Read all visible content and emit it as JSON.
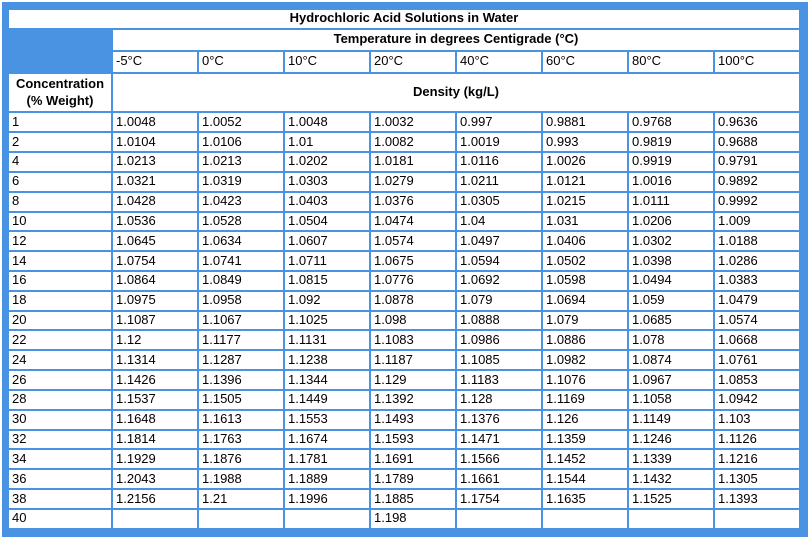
{
  "colors": {
    "frame_blue": "#4a92e2",
    "cell_background": "#ffffff",
    "text_color": "#000000"
  },
  "table": {
    "title": "Hydrochloric Acid Solutions in Water",
    "temperature_header": "Temperature in degrees Centigrade (°C)",
    "temperature_columns": [
      "-5°C",
      "0°C",
      "10°C",
      "20°C",
      "40°C",
      "60°C",
      "80°C",
      "100°C"
    ],
    "concentration_label_line1": "Concentration",
    "concentration_label_line2": "(% Weight)",
    "density_label": "Density (kg/L)",
    "rows": [
      {
        "concentration": "1",
        "values": [
          "1.0048",
          "1.0052",
          "1.0048",
          "1.0032",
          "0.997",
          "0.9881",
          "0.9768",
          "0.9636"
        ]
      },
      {
        "concentration": "2",
        "values": [
          "1.0104",
          "1.0106",
          "1.01",
          "1.0082",
          "1.0019",
          "0.993",
          "0.9819",
          "0.9688"
        ]
      },
      {
        "concentration": "4",
        "values": [
          "1.0213",
          "1.0213",
          "1.0202",
          "1.0181",
          "1.0116",
          "1.0026",
          "0.9919",
          "0.9791"
        ]
      },
      {
        "concentration": "6",
        "values": [
          "1.0321",
          "1.0319",
          "1.0303",
          "1.0279",
          "1.0211",
          "1.0121",
          "1.0016",
          "0.9892"
        ]
      },
      {
        "concentration": "8",
        "values": [
          "1.0428",
          "1.0423",
          "1.0403",
          "1.0376",
          "1.0305",
          "1.0215",
          "1.0111",
          "0.9992"
        ]
      },
      {
        "concentration": "10",
        "values": [
          "1.0536",
          "1.0528",
          "1.0504",
          "1.0474",
          "1.04",
          "1.031",
          "1.0206",
          "1.009"
        ]
      },
      {
        "concentration": "12",
        "values": [
          "1.0645",
          "1.0634",
          "1.0607",
          "1.0574",
          "1.0497",
          "1.0406",
          "1.0302",
          "1.0188"
        ]
      },
      {
        "concentration": "14",
        "values": [
          "1.0754",
          "1.0741",
          "1.0711",
          "1.0675",
          "1.0594",
          "1.0502",
          "1.0398",
          "1.0286"
        ]
      },
      {
        "concentration": "16",
        "values": [
          "1.0864",
          "1.0849",
          "1.0815",
          "1.0776",
          "1.0692",
          "1.0598",
          "1.0494",
          "1.0383"
        ]
      },
      {
        "concentration": "18",
        "values": [
          "1.0975",
          "1.0958",
          "1.092",
          "1.0878",
          "1.079",
          "1.0694",
          "1.059",
          "1.0479"
        ]
      },
      {
        "concentration": "20",
        "values": [
          "1.1087",
          "1.1067",
          "1.1025",
          "1.098",
          "1.0888",
          "1.079",
          "1.0685",
          "1.0574"
        ]
      },
      {
        "concentration": "22",
        "values": [
          "1.12",
          "1.1177",
          "1.1131",
          "1.1083",
          "1.0986",
          "1.0886",
          "1.078",
          "1.0668"
        ]
      },
      {
        "concentration": "24",
        "values": [
          "1.1314",
          "1.1287",
          "1.1238",
          "1.1187",
          "1.1085",
          "1.0982",
          "1.0874",
          "1.0761"
        ]
      },
      {
        "concentration": "26",
        "values": [
          "1.1426",
          "1.1396",
          "1.1344",
          "1.129",
          "1.1183",
          "1.1076",
          "1.0967",
          "1.0853"
        ]
      },
      {
        "concentration": "28",
        "values": [
          "1.1537",
          "1.1505",
          "1.1449",
          "1.1392",
          "1.128",
          "1.1169",
          "1.1058",
          "1.0942"
        ]
      },
      {
        "concentration": "30",
        "values": [
          "1.1648",
          "1.1613",
          "1.1553",
          "1.1493",
          "1.1376",
          "1.126",
          "1.1149",
          "1.103"
        ]
      },
      {
        "concentration": "32",
        "values": [
          "1.1814",
          "1.1763",
          "1.1674",
          "1.1593",
          "1.1471",
          "1.1359",
          "1.1246",
          "1.1126"
        ]
      },
      {
        "concentration": "34",
        "values": [
          "1.1929",
          "1.1876",
          "1.1781",
          "1.1691",
          "1.1566",
          "1.1452",
          "1.1339",
          "1.1216"
        ]
      },
      {
        "concentration": "36",
        "values": [
          "1.2043",
          "1.1988",
          "1.1889",
          "1.1789",
          "1.1661",
          "1.1544",
          "1.1432",
          "1.1305"
        ]
      },
      {
        "concentration": "38",
        "values": [
          "1.2156",
          "1.21",
          "1.1996",
          "1.1885",
          "1.1754",
          "1.1635",
          "1.1525",
          "1.1393"
        ]
      },
      {
        "concentration": "40",
        "values": [
          "",
          "",
          "",
          "1.198",
          "",
          "",
          "",
          ""
        ]
      }
    ]
  },
  "chart_data": {
    "type": "table",
    "title": "Hydrochloric Acid Solutions in Water",
    "column_group_label": "Temperature in degrees Centigrade (°C)",
    "row_group_label": "Concentration (% Weight)",
    "value_label": "Density (kg/L)",
    "columns_temperature_c": [
      -5,
      0,
      10,
      20,
      40,
      60,
      80,
      100
    ],
    "rows_concentration_pct": [
      1,
      2,
      4,
      6,
      8,
      10,
      12,
      14,
      16,
      18,
      20,
      22,
      24,
      26,
      28,
      30,
      32,
      34,
      36,
      38,
      40
    ],
    "density_values": [
      [
        1.0048,
        1.0052,
        1.0048,
        1.0032,
        0.997,
        0.9881,
        0.9768,
        0.9636
      ],
      [
        1.0104,
        1.0106,
        1.01,
        1.0082,
        1.0019,
        0.993,
        0.9819,
        0.9688
      ],
      [
        1.0213,
        1.0213,
        1.0202,
        1.0181,
        1.0116,
        1.0026,
        0.9919,
        0.9791
      ],
      [
        1.0321,
        1.0319,
        1.0303,
        1.0279,
        1.0211,
        1.0121,
        1.0016,
        0.9892
      ],
      [
        1.0428,
        1.0423,
        1.0403,
        1.0376,
        1.0305,
        1.0215,
        1.0111,
        0.9992
      ],
      [
        1.0536,
        1.0528,
        1.0504,
        1.0474,
        1.04,
        1.031,
        1.0206,
        1.009
      ],
      [
        1.0645,
        1.0634,
        1.0607,
        1.0574,
        1.0497,
        1.0406,
        1.0302,
        1.0188
      ],
      [
        1.0754,
        1.0741,
        1.0711,
        1.0675,
        1.0594,
        1.0502,
        1.0398,
        1.0286
      ],
      [
        1.0864,
        1.0849,
        1.0815,
        1.0776,
        1.0692,
        1.0598,
        1.0494,
        1.0383
      ],
      [
        1.0975,
        1.0958,
        1.092,
        1.0878,
        1.079,
        1.0694,
        1.059,
        1.0479
      ],
      [
        1.1087,
        1.1067,
        1.1025,
        1.098,
        1.0888,
        1.079,
        1.0685,
        1.0574
      ],
      [
        1.12,
        1.1177,
        1.1131,
        1.1083,
        1.0986,
        1.0886,
        1.078,
        1.0668
      ],
      [
        1.1314,
        1.1287,
        1.1238,
        1.1187,
        1.1085,
        1.0982,
        1.0874,
        1.0761
      ],
      [
        1.1426,
        1.1396,
        1.1344,
        1.129,
        1.1183,
        1.1076,
        1.0967,
        1.0853
      ],
      [
        1.1537,
        1.1505,
        1.1449,
        1.1392,
        1.128,
        1.1169,
        1.1058,
        1.0942
      ],
      [
        1.1648,
        1.1613,
        1.1553,
        1.1493,
        1.1376,
        1.126,
        1.1149,
        1.103
      ],
      [
        1.1814,
        1.1763,
        1.1674,
        1.1593,
        1.1471,
        1.1359,
        1.1246,
        1.1126
      ],
      [
        1.1929,
        1.1876,
        1.1781,
        1.1691,
        1.1566,
        1.1452,
        1.1339,
        1.1216
      ],
      [
        1.2043,
        1.1988,
        1.1889,
        1.1789,
        1.1661,
        1.1544,
        1.1432,
        1.1305
      ],
      [
        1.2156,
        1.21,
        1.1996,
        1.1885,
        1.1754,
        1.1635,
        1.1525,
        1.1393
      ],
      [
        null,
        null,
        null,
        1.198,
        null,
        null,
        null,
        null
      ]
    ]
  }
}
